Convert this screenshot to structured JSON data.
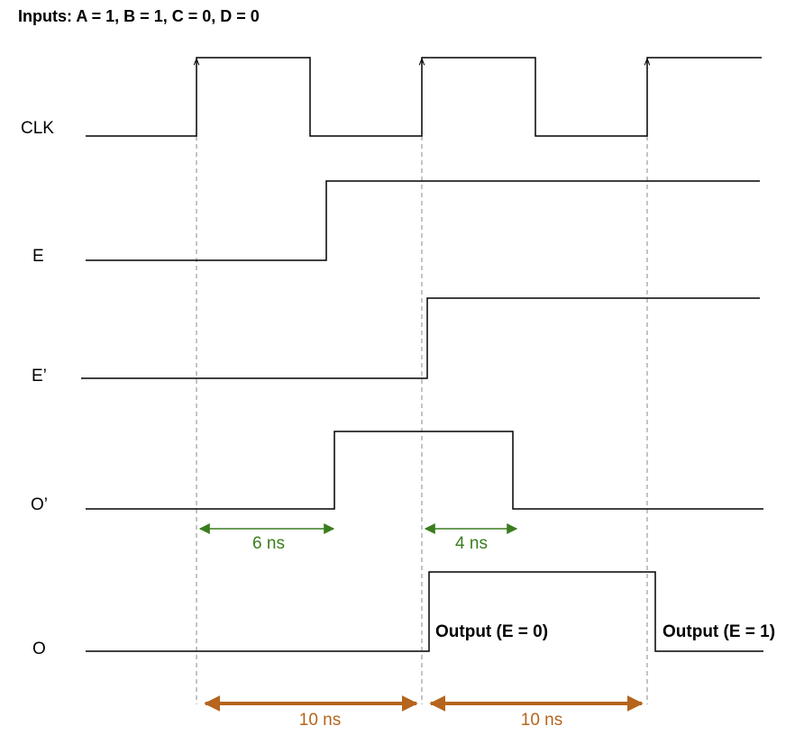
{
  "title": "Inputs: A = 1, B = 1, C = 0, D = 0",
  "signals": [
    "CLK",
    "E",
    "E’",
    "O’",
    "O"
  ],
  "delays": [
    "6 ns",
    "4 ns"
  ],
  "periods": [
    "10 ns",
    "10 ns"
  ],
  "outputs": [
    "Output (E = 0)",
    "Output (E = 1)"
  ]
}
